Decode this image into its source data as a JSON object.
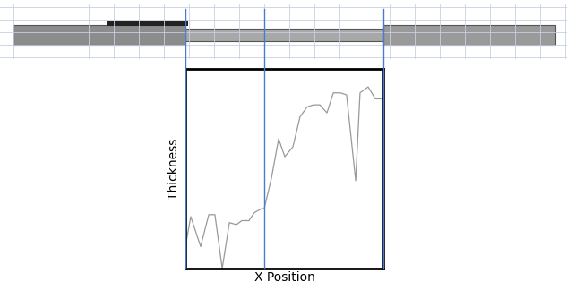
{
  "chart_data": {
    "type": "line",
    "x_label": "X Position",
    "y_label": "Thickness",
    "x": [
      0,
      2.7,
      7.7,
      11.8,
      14.9,
      18.6,
      22.2,
      25.8,
      28.5,
      32.1,
      34.8,
      38.5,
      39.8,
      43.4,
      47.1,
      50.2,
      54.3,
      57.9,
      61.5,
      64.7,
      67.9,
      71.5,
      74.7,
      78.3,
      81.4,
      86.0,
      88.2,
      92.3,
      95.9,
      100
    ],
    "values": [
      11,
      26,
      11,
      27,
      27,
      0,
      23,
      22,
      24,
      24,
      28,
      30,
      30,
      45,
      65,
      56,
      61,
      76,
      81,
      82,
      82,
      78,
      88,
      88,
      87,
      44,
      88,
      91,
      85,
      85
    ],
    "color": "#999999",
    "xlim": [
      0,
      100
    ],
    "ylim": [
      0,
      100
    ],
    "vlines": [
      0,
      39.8,
      100
    ],
    "vline_color": "#4a7bd0",
    "tick_labels": false,
    "grid": false
  }
}
